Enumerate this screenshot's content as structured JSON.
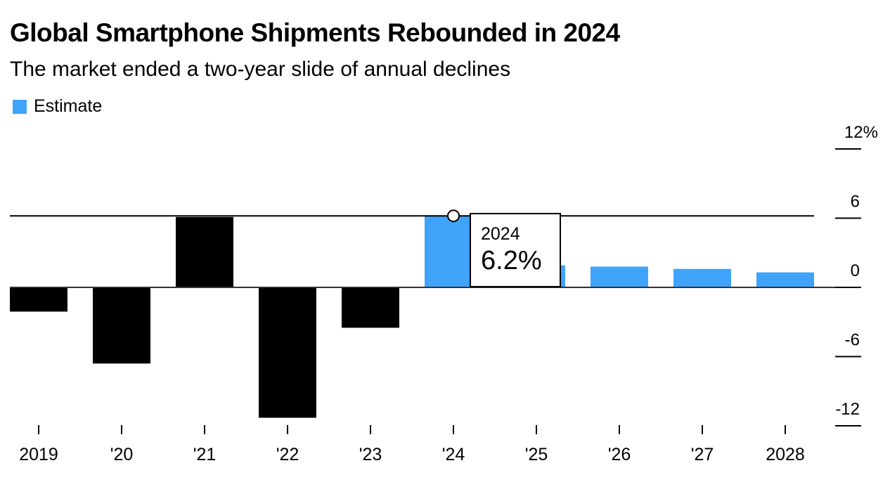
{
  "chart_data": {
    "type": "bar",
    "title": "Global Smartphone Shipments Rebounded in 2024",
    "subtitle": "The market ended a two-year slide of annual declines",
    "xlabel": "",
    "ylabel": "",
    "legend": {
      "placement": "top-left",
      "entries": [
        {
          "label": "Estimate",
          "color": "#3fa3fa"
        }
      ]
    },
    "categories": [
      "2019",
      "'20",
      "'21",
      "'22",
      "'23",
      "'24",
      "'25",
      "'26",
      "'27",
      "2028"
    ],
    "values": [
      -2.1,
      -6.6,
      6.1,
      -11.3,
      -3.5,
      6.2,
      1.9,
      1.8,
      1.6,
      1.3
    ],
    "estimate": [
      false,
      false,
      false,
      false,
      false,
      true,
      true,
      true,
      true,
      true
    ],
    "colors": {
      "actual": "#000000",
      "estimate": "#3fa3fa"
    },
    "ylim": [
      -12,
      12
    ],
    "yticks": [
      12,
      6,
      0,
      -6,
      -12
    ],
    "ytick_labels": [
      "12%",
      "6",
      "0",
      "-6",
      "-12"
    ],
    "y_axis_side": "right",
    "grid": false,
    "highlight": {
      "category_index": 5,
      "year_label": "2024",
      "value_label": "6.2%"
    }
  }
}
